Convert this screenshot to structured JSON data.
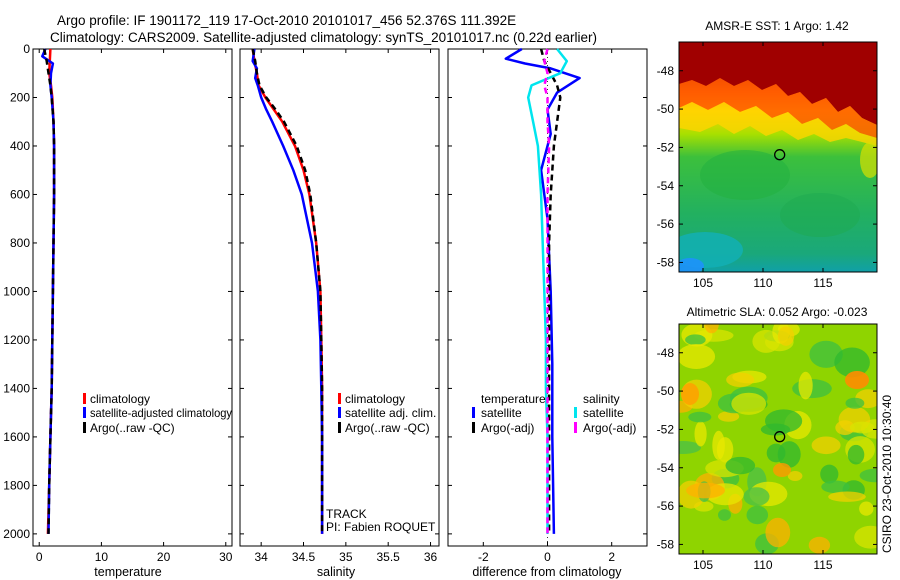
{
  "header": {
    "line1": "Argo profile: IF 1901172_119 17-Oct-2010 20101017_456 52.376S 111.392E",
    "line2": "Climatology: CARS2009. Satellite-adjusted climatology: synTS_20101017.nc (0.22d earlier)"
  },
  "credit": "CSIRO 23-Oct-2010 10:30:40",
  "colors": {
    "red": "#ff0000",
    "blue": "#0000ff",
    "black": "#000000",
    "cyan": "#00e5ee",
    "magenta": "#ff00ff"
  },
  "chart_data": [
    {
      "type": "line",
      "id": "temperature",
      "xlabel": "temperature",
      "xlim": [
        -1,
        31
      ],
      "ylim": [
        2050,
        0
      ],
      "xticks": [
        0,
        10,
        20,
        30
      ],
      "yticks": [
        0,
        200,
        400,
        600,
        800,
        1000,
        1200,
        1400,
        1600,
        1800,
        2000
      ],
      "legend": [
        "climatology",
        "satellite-adjusted climatology",
        "Argo(..raw -QC)"
      ],
      "series": [
        {
          "name": "climatology",
          "color": "red",
          "style": "solid",
          "depth": [
            0,
            50,
            100,
            150,
            200,
            300,
            400,
            600,
            800,
            1000,
            1200,
            1400,
            1600,
            1800,
            2000
          ],
          "values": [
            1.8,
            1.7,
            1.6,
            1.9,
            2.1,
            2.3,
            2.4,
            2.4,
            2.3,
            2.2,
            2.1,
            2.0,
            1.8,
            1.6,
            1.4
          ]
        },
        {
          "name": "satellite-adjusted climatology",
          "color": "blue",
          "style": "solid",
          "depth": [
            0,
            30,
            60,
            100,
            150,
            200,
            300,
            400,
            600,
            800,
            1000,
            1200,
            1400,
            1600,
            1800,
            2000
          ],
          "values": [
            1.0,
            0.5,
            2.2,
            1.9,
            1.8,
            2.0,
            2.3,
            2.4,
            2.4,
            2.3,
            2.2,
            2.1,
            2.0,
            1.8,
            1.6,
            1.5
          ]
        },
        {
          "name": "Argo(..raw -QC)",
          "color": "black",
          "style": "dashed",
          "depth": [
            0,
            50,
            100,
            150,
            200,
            300,
            400,
            600,
            800,
            1000,
            1200,
            1400,
            1600,
            1800,
            2000
          ],
          "values": [
            0.8,
            1.2,
            1.5,
            1.8,
            2.0,
            2.3,
            2.4,
            2.4,
            2.3,
            2.2,
            2.1,
            2.0,
            1.8,
            1.6,
            1.5
          ]
        }
      ]
    },
    {
      "type": "line",
      "id": "salinity",
      "xlabel": "salinity",
      "xlim": [
        33.75,
        36.1
      ],
      "ylim": [
        2050,
        0
      ],
      "xticks": [
        34,
        34.5,
        35,
        35.5,
        36
      ],
      "legend": [
        "climatology",
        "satellite adj. clim.",
        "Argo(..raw -QC)"
      ],
      "annotation": [
        "TRACK",
        "PI: Fabien ROQUET"
      ],
      "series": [
        {
          "name": "climatology",
          "color": "red",
          "style": "solid",
          "depth": [
            0,
            50,
            100,
            150,
            200,
            250,
            300,
            400,
            500,
            600,
            800,
            1000,
            1200,
            1400,
            1600,
            1800,
            2000
          ],
          "values": [
            33.9,
            33.92,
            33.95,
            33.97,
            34.05,
            34.15,
            34.25,
            34.4,
            34.5,
            34.57,
            34.65,
            34.7,
            34.71,
            34.72,
            34.72,
            34.72,
            34.72
          ]
        },
        {
          "name": "satellite adj. clim.",
          "color": "blue",
          "style": "solid",
          "depth": [
            0,
            50,
            80,
            120,
            150,
            200,
            250,
            300,
            400,
            500,
            600,
            800,
            1000,
            1200,
            1400,
            1600,
            1800,
            2000
          ],
          "values": [
            33.92,
            33.9,
            33.95,
            33.93,
            33.96,
            34.0,
            34.06,
            34.13,
            34.26,
            34.38,
            34.48,
            34.6,
            34.67,
            34.7,
            34.71,
            34.72,
            34.72,
            34.72
          ]
        },
        {
          "name": "Argo(..raw -QC)",
          "color": "black",
          "style": "dashed",
          "depth": [
            0,
            50,
            100,
            150,
            200,
            250,
            300,
            400,
            500,
            600,
            800,
            1000,
            1200,
            1400,
            1600,
            1800,
            2000
          ],
          "values": [
            33.9,
            33.93,
            33.95,
            33.98,
            34.06,
            34.17,
            34.27,
            34.42,
            34.52,
            34.58,
            34.65,
            34.7,
            34.71,
            34.72,
            34.72,
            34.72,
            34.72
          ]
        }
      ]
    },
    {
      "type": "line",
      "id": "difference",
      "xlabel": "difference from climatology",
      "xlim": [
        -3.1,
        3.1
      ],
      "ylim": [
        2050,
        0
      ],
      "xticks": [
        -2,
        0,
        2
      ],
      "legend_groups": [
        {
          "title": "temperature",
          "items": [
            "satellite",
            "Argo(-adj)"
          ]
        },
        {
          "title": "salinity",
          "items": [
            "satellite",
            "Argo(-adj)"
          ]
        }
      ],
      "series": [
        {
          "name": "temperature satellite",
          "color": "blue",
          "style": "solid",
          "depth": [
            0,
            40,
            60,
            80,
            120,
            180,
            250,
            350,
            500,
            700,
            1000,
            1300,
            1600,
            2000
          ],
          "values": [
            -0.8,
            -1.3,
            -0.7,
            0.1,
            1.0,
            0.3,
            0.0,
            0.1,
            -0.2,
            0.0,
            0.1,
            0.15,
            0.15,
            0.2
          ]
        },
        {
          "name": "temperature Argo(-adj)",
          "color": "black",
          "style": "dashed",
          "depth": [
            0,
            50,
            100,
            150,
            200,
            300,
            400,
            600,
            800,
            1000,
            1400,
            2000
          ],
          "values": [
            -0.2,
            -0.1,
            0.1,
            0.3,
            0.4,
            0.3,
            0.2,
            0.1,
            0.05,
            0.05,
            0.05,
            0.05
          ]
        },
        {
          "name": "salinity satellite",
          "color": "cyan",
          "style": "solid",
          "depth": [
            0,
            50,
            100,
            150,
            200,
            300,
            400,
            500,
            600,
            800,
            1000,
            1200,
            1400,
            1600,
            2000
          ],
          "values": [
            0.3,
            0.6,
            0.4,
            -0.5,
            -0.6,
            -0.45,
            -0.3,
            -0.25,
            -0.2,
            -0.15,
            -0.1,
            -0.05,
            -0.05,
            0.0,
            0.0
          ]
        },
        {
          "name": "salinity Argo(-adj)",
          "color": "magenta",
          "style": "dashed",
          "depth": [
            0,
            50,
            100,
            150,
            200,
            300,
            400,
            600,
            800,
            1000,
            1400,
            2000
          ],
          "values": [
            0.0,
            -0.1,
            0.0,
            -0.1,
            0.0,
            0.0,
            0.05,
            0.0,
            0.0,
            0.0,
            0.0,
            0.0
          ]
        }
      ]
    },
    {
      "type": "heatmap",
      "id": "sst_map",
      "title": "AMSR-E SST: 1 Argo: 1.42",
      "xlim": [
        103,
        119.5
      ],
      "ylim": [
        -58.5,
        -46.5
      ],
      "xticks": [
        105,
        110,
        115
      ],
      "yticks": [
        -48,
        -50,
        -52,
        -54,
        -56,
        -58
      ],
      "marker": {
        "lon": 111.39,
        "lat": -52.38
      },
      "zones": [
        "dark red",
        "orange",
        "yellow",
        "green",
        "cyan"
      ]
    },
    {
      "type": "heatmap",
      "id": "sla_map",
      "title": "Altimetric SLA: 0.052 Argo: -0.023",
      "xlim": [
        103,
        119.5
      ],
      "ylim": [
        -58.5,
        -46.5
      ],
      "xticks": [
        105,
        110,
        115
      ],
      "yticks": [
        -48,
        -50,
        -52,
        -54,
        -56,
        -58
      ],
      "marker": {
        "lon": 111.39,
        "lat": -52.38
      },
      "zones": [
        "green",
        "yellow",
        "orange"
      ]
    }
  ]
}
